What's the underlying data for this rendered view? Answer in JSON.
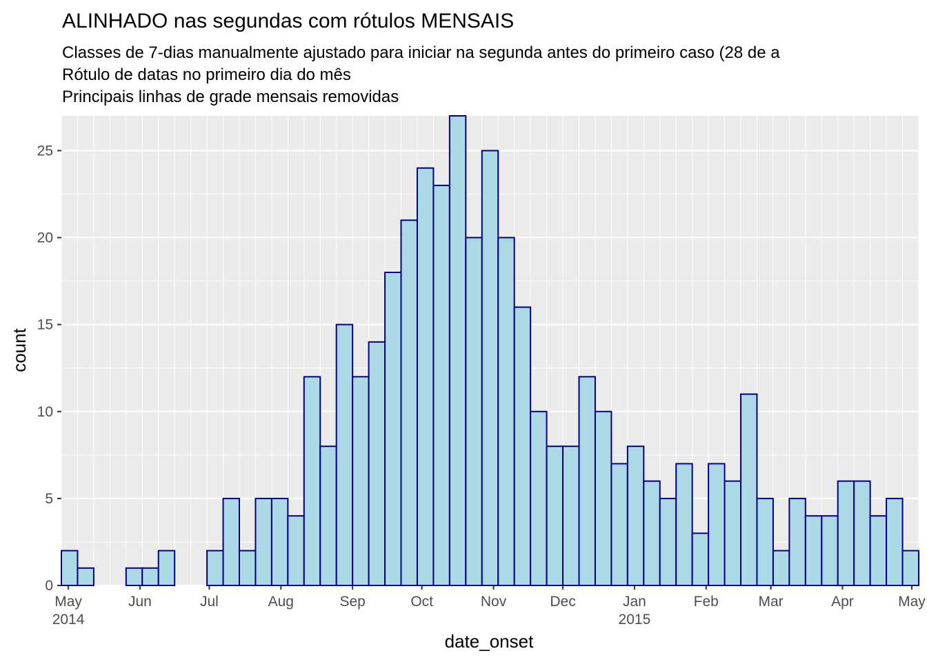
{
  "chart_data": {
    "type": "bar",
    "title": "ALINHADO nas segundas com rótulos MENSAIS",
    "subtitle_lines": [
      "Classes de 7-dias manualmente ajustado para iniciar na segunda antes do primeiro caso (28 de a",
      "Rótulo de datas no primeiro dia do mês",
      "Principais linhas de grade mensais removidas"
    ],
    "xlabel": "date_onset",
    "ylabel": "count",
    "ylim": [
      0,
      27
    ],
    "y_ticks": [
      0,
      5,
      10,
      15,
      20,
      25
    ],
    "grid": true,
    "bin_width_days": 7,
    "bins_start": "2014-04-28",
    "x_range": [
      "2014-04-28",
      "2015-05-04"
    ],
    "x_ticks": [
      {
        "date": "2014-05-01",
        "label": "May",
        "year": "2014"
      },
      {
        "date": "2014-06-01",
        "label": "Jun",
        "year": ""
      },
      {
        "date": "2014-07-01",
        "label": "Jul",
        "year": ""
      },
      {
        "date": "2014-08-01",
        "label": "Aug",
        "year": ""
      },
      {
        "date": "2014-09-01",
        "label": "Sep",
        "year": ""
      },
      {
        "date": "2014-10-01",
        "label": "Oct",
        "year": ""
      },
      {
        "date": "2014-11-01",
        "label": "Nov",
        "year": ""
      },
      {
        "date": "2014-12-01",
        "label": "Dec",
        "year": ""
      },
      {
        "date": "2015-01-01",
        "label": "Jan",
        "year": "2015"
      },
      {
        "date": "2015-02-01",
        "label": "Feb",
        "year": ""
      },
      {
        "date": "2015-03-01",
        "label": "Mar",
        "year": ""
      },
      {
        "date": "2015-04-01",
        "label": "Apr",
        "year": ""
      },
      {
        "date": "2015-05-01",
        "label": "May",
        "year": ""
      }
    ],
    "values": [
      2,
      1,
      0,
      0,
      1,
      1,
      2,
      0,
      0,
      2,
      5,
      2,
      5,
      5,
      4,
      12,
      8,
      15,
      12,
      14,
      18,
      21,
      24,
      23,
      27,
      20,
      25,
      20,
      16,
      10,
      8,
      8,
      12,
      10,
      7,
      8,
      6,
      5,
      7,
      3,
      7,
      6,
      11,
      5,
      2,
      5,
      4,
      4,
      6,
      6,
      4,
      5,
      2
    ],
    "colors": {
      "fill": "#add8e6",
      "outline": "#00008b",
      "panel": "#ebebeb",
      "grid": "#ffffff"
    }
  }
}
